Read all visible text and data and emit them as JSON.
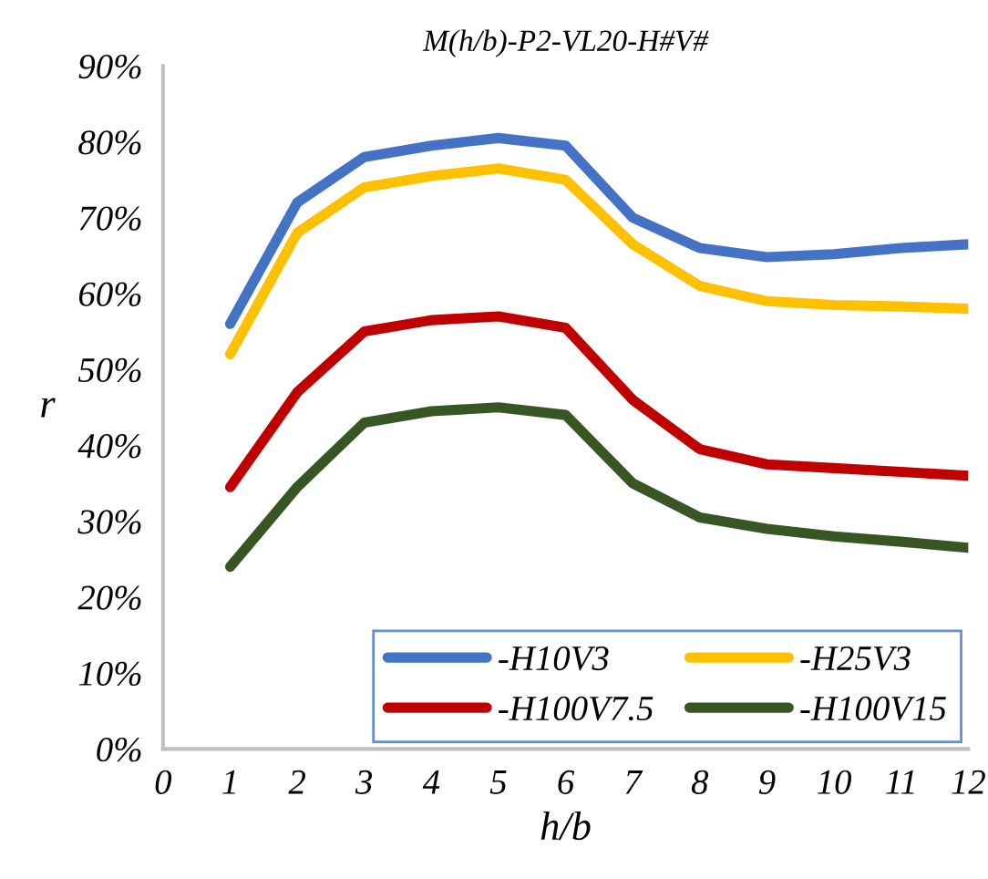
{
  "chart_data": {
    "type": "line",
    "title": "M(h/b)-P2-VL20-H#V#",
    "xlabel": "h/b",
    "ylabel": "r",
    "xlim": [
      0,
      12
    ],
    "xticks": [
      0,
      1,
      2,
      3,
      4,
      5,
      6,
      7,
      8,
      9,
      10,
      11,
      12
    ],
    "ylim": [
      0,
      0.9
    ],
    "yticks": [
      {
        "value": 0,
        "label": "0%"
      },
      {
        "value": 0.1,
        "label": "10%"
      },
      {
        "value": 0.2,
        "label": "20%"
      },
      {
        "value": 0.3,
        "label": "30%"
      },
      {
        "value": 0.4,
        "label": "40%"
      },
      {
        "value": 0.5,
        "label": "50%"
      },
      {
        "value": 0.6,
        "label": "60%"
      },
      {
        "value": 0.7,
        "label": "70%"
      },
      {
        "value": 0.8,
        "label": "80%"
      },
      {
        "value": 0.9,
        "label": "90%"
      }
    ],
    "x": [
      1,
      2,
      3,
      4,
      5,
      6,
      7,
      8,
      9,
      10,
      11,
      12
    ],
    "grid": false,
    "legend": "bottom right",
    "marker": "none",
    "line_style": "solid",
    "series": [
      {
        "name": "-H10V3",
        "color": "#4472c4",
        "values": [
          0.56,
          0.72,
          0.78,
          0.795,
          0.805,
          0.795,
          0.7,
          0.66,
          0.648,
          0.652,
          0.66,
          0.665
        ]
      },
      {
        "name": "-H25V3",
        "color": "#ffc000",
        "values": [
          0.52,
          0.68,
          0.74,
          0.755,
          0.765,
          0.75,
          0.665,
          0.61,
          0.59,
          0.585,
          0.583,
          0.58
        ]
      },
      {
        "name": "-H100V7.5",
        "color": "#c00000",
        "values": [
          0.345,
          0.47,
          0.55,
          0.565,
          0.57,
          0.555,
          0.46,
          0.395,
          0.375,
          0.37,
          0.365,
          0.36
        ]
      },
      {
        "name": "-H100V15",
        "color": "#375623",
        "values": [
          0.24,
          0.345,
          0.43,
          0.445,
          0.45,
          0.44,
          0.35,
          0.305,
          0.29,
          0.28,
          0.273,
          0.265
        ]
      }
    ]
  }
}
